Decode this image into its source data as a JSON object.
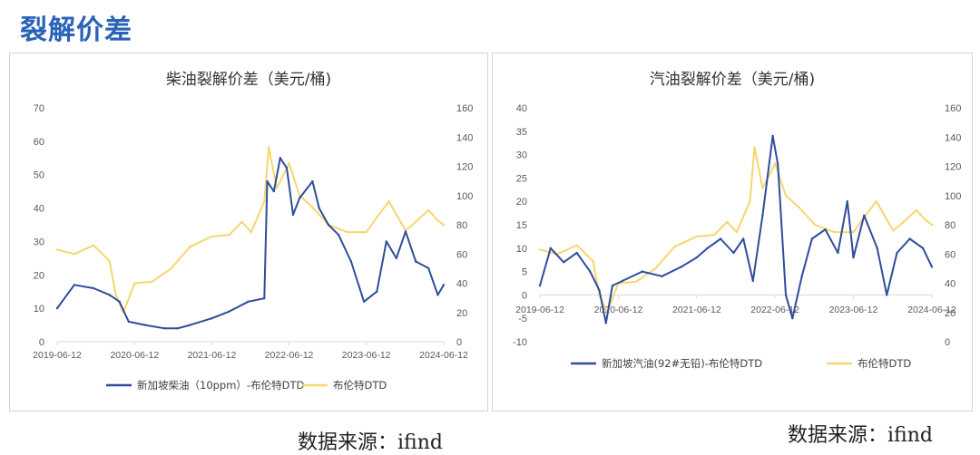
{
  "page": {
    "title": "裂解价差",
    "source_left": "数据来源：ifind",
    "source_right": "数据来源：ifind"
  },
  "colors": {
    "crack": "#2e4d9b",
    "brent": "#f5d76e",
    "axis_text": "#595959",
    "axis_line": "#d9d9d9"
  },
  "chart_data": [
    {
      "type": "line",
      "title": "柴油裂解价差（美元/桶)",
      "x_ticks": [
        "2019-06-12",
        "2020-06-12",
        "2021-06-12",
        "2022-06-12",
        "2023-06-12",
        "2024-06-12"
      ],
      "xlim": [
        "2019-06-12",
        "2024-06-12"
      ],
      "y_left": {
        "min": 0,
        "max": 70,
        "ticks": [
          0,
          10,
          20,
          30,
          40,
          50,
          60,
          70
        ]
      },
      "y_right": {
        "min": 0,
        "max": 160,
        "ticks": [
          0,
          20,
          40,
          60,
          80,
          100,
          120,
          140,
          160
        ]
      },
      "series": [
        {
          "name": "新加坡柴油（10ppm）-布伦特DTD",
          "axis": "left",
          "color": "#2e4d9b",
          "x": [
            "2019-06-12",
            "2019-09-01",
            "2019-12-01",
            "2020-02-15",
            "2020-04-01",
            "2020-05-15",
            "2020-08-01",
            "2020-11-01",
            "2021-01-01",
            "2021-03-01",
            "2021-06-12",
            "2021-09-01",
            "2021-12-01",
            "2022-02-15",
            "2022-03-01",
            "2022-04-01",
            "2022-05-01",
            "2022-06-01",
            "2022-07-01",
            "2022-08-01",
            "2022-10-01",
            "2022-11-01",
            "2022-12-15",
            "2023-02-01",
            "2023-04-01",
            "2023-06-01",
            "2023-08-01",
            "2023-09-15",
            "2023-11-01",
            "2023-12-15",
            "2024-02-01",
            "2024-04-01",
            "2024-05-15",
            "2024-06-12"
          ],
          "values": [
            10,
            17,
            16,
            14,
            12,
            6,
            5,
            4,
            4,
            5,
            7,
            9,
            12,
            13,
            48,
            45,
            55,
            52,
            38,
            43,
            48,
            40,
            35,
            32,
            24,
            12,
            15,
            30,
            25,
            33,
            24,
            22,
            14,
            17
          ]
        },
        {
          "name": "布伦特DTD",
          "axis": "right",
          "color": "#f5d76e",
          "x": [
            "2019-06-12",
            "2019-09-01",
            "2019-12-01",
            "2020-02-15",
            "2020-03-15",
            "2020-04-20",
            "2020-06-12",
            "2020-09-01",
            "2020-12-01",
            "2021-03-01",
            "2021-06-12",
            "2021-09-01",
            "2021-11-01",
            "2021-12-15",
            "2022-02-15",
            "2022-03-08",
            "2022-04-15",
            "2022-06-12",
            "2022-08-01",
            "2022-10-01",
            "2022-12-15",
            "2023-03-15",
            "2023-06-12",
            "2023-08-01",
            "2023-09-27",
            "2023-12-15",
            "2024-02-01",
            "2024-04-01",
            "2024-05-15",
            "2024-06-12"
          ],
          "values": [
            63,
            60,
            66,
            55,
            32,
            20,
            40,
            41,
            50,
            65,
            72,
            73,
            82,
            75,
            96,
            133,
            105,
            122,
            100,
            92,
            80,
            75,
            75,
            85,
            96,
            76,
            82,
            90,
            83,
            80
          ]
        }
      ],
      "legend": "bottom"
    },
    {
      "type": "line",
      "title": "汽油裂解价差（美元/桶)",
      "x_ticks": [
        "2019-06-12",
        "2020-06-12",
        "2021-06-12",
        "2022-06-12",
        "2023-06-12",
        "2024-06-12"
      ],
      "xlim": [
        "2019-06-12",
        "2024-06-12"
      ],
      "y_left": {
        "min": -10,
        "max": 40,
        "ticks": [
          -10,
          -5,
          0,
          5,
          10,
          15,
          20,
          25,
          30,
          35,
          40
        ]
      },
      "y_right": {
        "min": 0,
        "max": 160,
        "ticks": [
          0,
          20,
          40,
          60,
          80,
          100,
          120,
          140,
          160
        ]
      },
      "series": [
        {
          "name": "新加坡汽油(92#无铅)-布伦特DTD",
          "axis": "left",
          "color": "#2e4d9b",
          "x": [
            "2019-06-12",
            "2019-08-01",
            "2019-10-01",
            "2019-12-01",
            "2020-02-01",
            "2020-03-15",
            "2020-04-15",
            "2020-05-15",
            "2020-07-01",
            "2020-10-01",
            "2021-01-01",
            "2021-04-01",
            "2021-06-12",
            "2021-08-01",
            "2021-10-01",
            "2021-12-01",
            "2022-01-15",
            "2022-03-01",
            "2022-04-15",
            "2022-06-01",
            "2022-06-25",
            "2022-08-01",
            "2022-09-01",
            "2022-10-15",
            "2022-12-01",
            "2023-02-01",
            "2023-04-01",
            "2023-05-15",
            "2023-06-12",
            "2023-08-01",
            "2023-10-01",
            "2023-11-15",
            "2024-01-01",
            "2024-03-01",
            "2024-05-01",
            "2024-06-12"
          ],
          "values": [
            2,
            10,
            7,
            9,
            5,
            1,
            -6,
            2,
            3,
            5,
            4,
            6,
            8,
            10,
            12,
            9,
            12,
            3,
            17,
            34,
            28,
            0,
            -5,
            4,
            12,
            14,
            9,
            20,
            8,
            17,
            10,
            0,
            9,
            12,
            10,
            6
          ]
        },
        {
          "name": "布伦特DTD",
          "axis": "right",
          "color": "#f5d76e",
          "x": [
            "2019-06-12",
            "2019-09-01",
            "2019-12-01",
            "2020-02-15",
            "2020-03-15",
            "2020-04-20",
            "2020-06-12",
            "2020-09-01",
            "2020-12-01",
            "2021-03-01",
            "2021-06-12",
            "2021-09-01",
            "2021-11-01",
            "2021-12-15",
            "2022-02-15",
            "2022-03-08",
            "2022-04-15",
            "2022-06-12",
            "2022-08-01",
            "2022-10-01",
            "2022-12-15",
            "2023-03-15",
            "2023-06-12",
            "2023-08-01",
            "2023-09-27",
            "2023-12-15",
            "2024-02-01",
            "2024-04-01",
            "2024-05-15",
            "2024-06-12"
          ],
          "values": [
            63,
            60,
            66,
            55,
            32,
            20,
            40,
            41,
            50,
            65,
            72,
            73,
            82,
            75,
            96,
            133,
            105,
            122,
            100,
            92,
            80,
            75,
            75,
            85,
            96,
            76,
            82,
            90,
            83,
            80
          ]
        }
      ],
      "legend": "bottom"
    }
  ]
}
